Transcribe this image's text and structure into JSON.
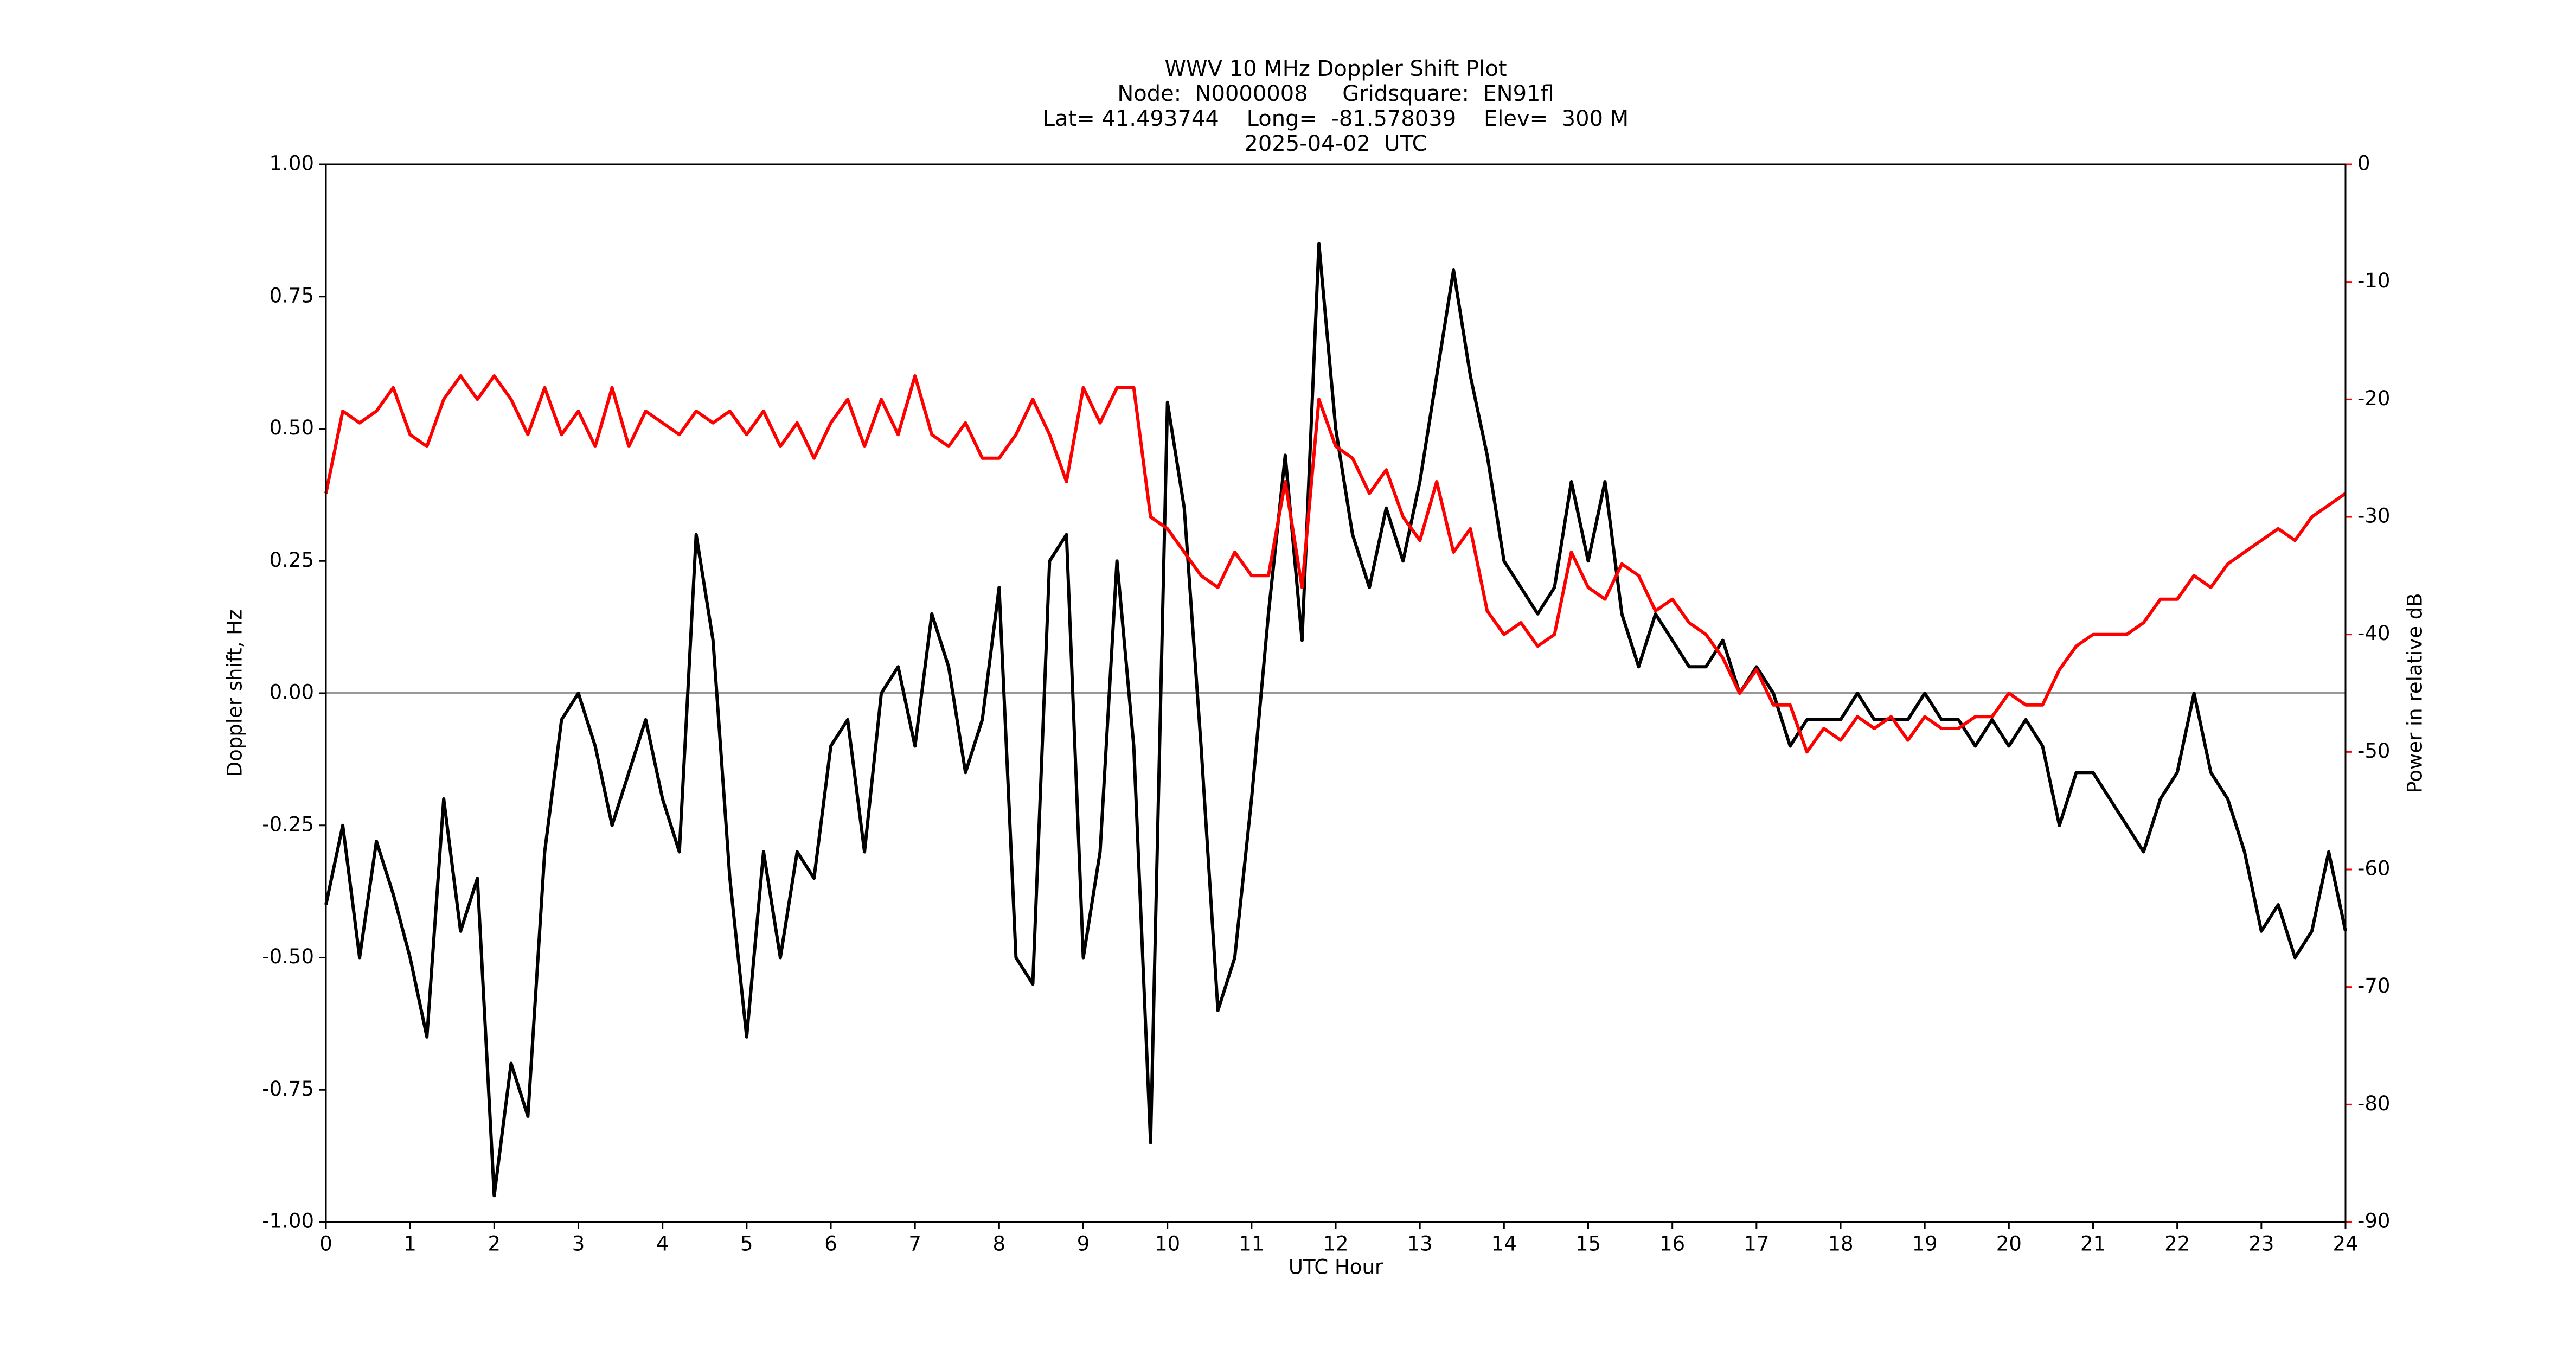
{
  "chart_data": {
    "type": "line",
    "title": [
      "WWV 10 MHz Doppler Shift Plot",
      "Node:  N0000008     Gridsquare:  EN91fl",
      "Lat= 41.493744    Long=  -81.578039    Elev=  300 M",
      "2025-04-02  UTC"
    ],
    "x_label": "UTC Hour",
    "y_label": "Doppler shift, Hz",
    "y2_label": "Power in relative dB",
    "y2_color": "red",
    "hline": 0,
    "hline_color": "#999999",
    "xlim": [
      0,
      24
    ],
    "xticks": [
      0,
      1,
      2,
      3,
      4,
      5,
      6,
      7,
      8,
      9,
      10,
      11,
      12,
      13,
      14,
      15,
      16,
      17,
      18,
      19,
      20,
      21,
      22,
      23,
      24
    ],
    "ylim": [
      -1,
      1
    ],
    "yticks": [
      {
        "value": -1,
        "label": "-1.00"
      },
      {
        "value": -0.75,
        "label": "-0.75"
      },
      {
        "value": -0.5,
        "label": "-0.50"
      },
      {
        "value": -0.25,
        "label": "-0.25"
      },
      {
        "value": 0,
        "label": "0.00"
      },
      {
        "value": 0.25,
        "label": "0.25"
      },
      {
        "value": 0.5,
        "label": "0.50"
      },
      {
        "value": 0.75,
        "label": "0.75"
      },
      {
        "value": 1,
        "label": "1.00"
      }
    ],
    "y2lim": [
      -90,
      0
    ],
    "y2ticks": [
      -90,
      -80,
      -70,
      -60,
      -50,
      -40,
      -30,
      -20,
      -10,
      0
    ],
    "x": [
      0,
      0.2,
      0.4,
      0.6,
      0.8,
      1,
      1.2,
      1.4,
      1.6,
      1.8,
      2,
      2.2,
      2.4,
      2.6,
      2.8,
      3,
      3.2,
      3.4,
      3.6,
      3.8,
      4,
      4.2,
      4.4,
      4.6,
      4.8,
      5,
      5.2,
      5.4,
      5.6,
      5.8,
      6,
      6.2,
      6.4,
      6.6,
      6.8,
      7,
      7.2,
      7.4,
      7.6,
      7.8,
      8,
      8.2,
      8.4,
      8.6,
      8.8,
      9,
      9.2,
      9.4,
      9.6,
      9.8,
      10,
      10.2,
      10.4,
      10.6,
      10.8,
      11,
      11.2,
      11.4,
      11.6,
      11.8,
      12,
      12.2,
      12.4,
      12.6,
      12.8,
      13,
      13.2,
      13.4,
      13.6,
      13.8,
      14,
      14.2,
      14.4,
      14.6,
      14.8,
      15,
      15.2,
      15.4,
      15.6,
      15.8,
      16,
      16.2,
      16.4,
      16.6,
      16.8,
      17,
      17.2,
      17.4,
      17.6,
      17.8,
      18,
      18.2,
      18.4,
      18.6,
      18.8,
      19,
      19.2,
      19.4,
      19.6,
      19.8,
      20,
      20.2,
      20.4,
      20.6,
      20.8,
      21,
      21.2,
      21.4,
      21.6,
      21.8,
      22,
      22.2,
      22.4,
      22.6,
      22.8,
      23,
      23.2,
      23.4,
      23.6,
      23.8,
      24
    ],
    "series": [
      {
        "color": "black",
        "values": [
          -0.4,
          -0.25,
          -0.5,
          -0.28,
          -0.38,
          -0.5,
          -0.65,
          -0.2,
          -0.45,
          -0.35,
          -0.95,
          -0.7,
          -0.8,
          -0.3,
          -0.05,
          0,
          -0.1,
          -0.25,
          -0.15,
          -0.05,
          -0.2,
          -0.3,
          0.3,
          0.1,
          -0.35,
          -0.65,
          -0.3,
          -0.5,
          -0.3,
          -0.35,
          -0.1,
          -0.05,
          -0.3,
          0,
          0.05,
          -0.1,
          0.15,
          0.05,
          -0.15,
          -0.05,
          0.2,
          -0.5,
          -0.55,
          0.25,
          0.3,
          -0.5,
          -0.3,
          0.25,
          -0.1,
          -0.85,
          0.55,
          0.35,
          -0.1,
          -0.6,
          -0.5,
          -0.2,
          0.15,
          0.45,
          0.1,
          0.85,
          0.5,
          0.3,
          0.2,
          0.35,
          0.25,
          0.4,
          0.6,
          0.8,
          0.6,
          0.45,
          0.25,
          0.2,
          0.15,
          0.2,
          0.4,
          0.25,
          0.4,
          0.15,
          0.05,
          0.15,
          0.1,
          0.05,
          0.05,
          0.1,
          0,
          0.05,
          0,
          -0.1,
          -0.05,
          -0.05,
          -0.05,
          0,
          -0.05,
          -0.05,
          -0.05,
          0,
          -0.05,
          -0.05,
          -0.1,
          -0.05,
          -0.1,
          -0.05,
          -0.1,
          -0.25,
          -0.15,
          -0.15,
          -0.2,
          -0.25,
          -0.3,
          -0.2,
          -0.15,
          0,
          -0.15,
          -0.2,
          -0.3,
          -0.45,
          -0.4,
          -0.5,
          -0.45,
          -0.3,
          -0.45
        ]
      },
      {
        "color": "red",
        "axis": "y2",
        "values": [
          -28,
          -21,
          -22,
          -21,
          -19,
          -23,
          -24,
          -20,
          -18,
          -20,
          -18,
          -20,
          -23,
          -19,
          -23,
          -21,
          -24,
          -19,
          -24,
          -21,
          -22,
          -23,
          -21,
          -22,
          -21,
          -23,
          -21,
          -24,
          -22,
          -25,
          -22,
          -20,
          -24,
          -20,
          -23,
          -18,
          -23,
          -24,
          -22,
          -25,
          -25,
          -23,
          -20,
          -23,
          -27,
          -19,
          -22,
          -19,
          -19,
          -30,
          -31,
          -33,
          -35,
          -36,
          -33,
          -35,
          -35,
          -27,
          -36,
          -20,
          -24,
          -25,
          -28,
          -26,
          -30,
          -32,
          -27,
          -33,
          -31,
          -38,
          -40,
          -39,
          -41,
          -40,
          -33,
          -36,
          -37,
          -34,
          -35,
          -38,
          -37,
          -39,
          -40,
          -42,
          -45,
          -43,
          -46,
          -46,
          -50,
          -48,
          -49,
          -47,
          -48,
          -47,
          -49,
          -47,
          -48,
          -48,
          -47,
          -47,
          -45,
          -46,
          -46,
          -43,
          -41,
          -40,
          -40,
          -40,
          -39,
          -37,
          -37,
          -35,
          -36,
          -34,
          -33,
          -32,
          -31,
          -32,
          -30,
          -29,
          -28
        ]
      }
    ]
  }
}
